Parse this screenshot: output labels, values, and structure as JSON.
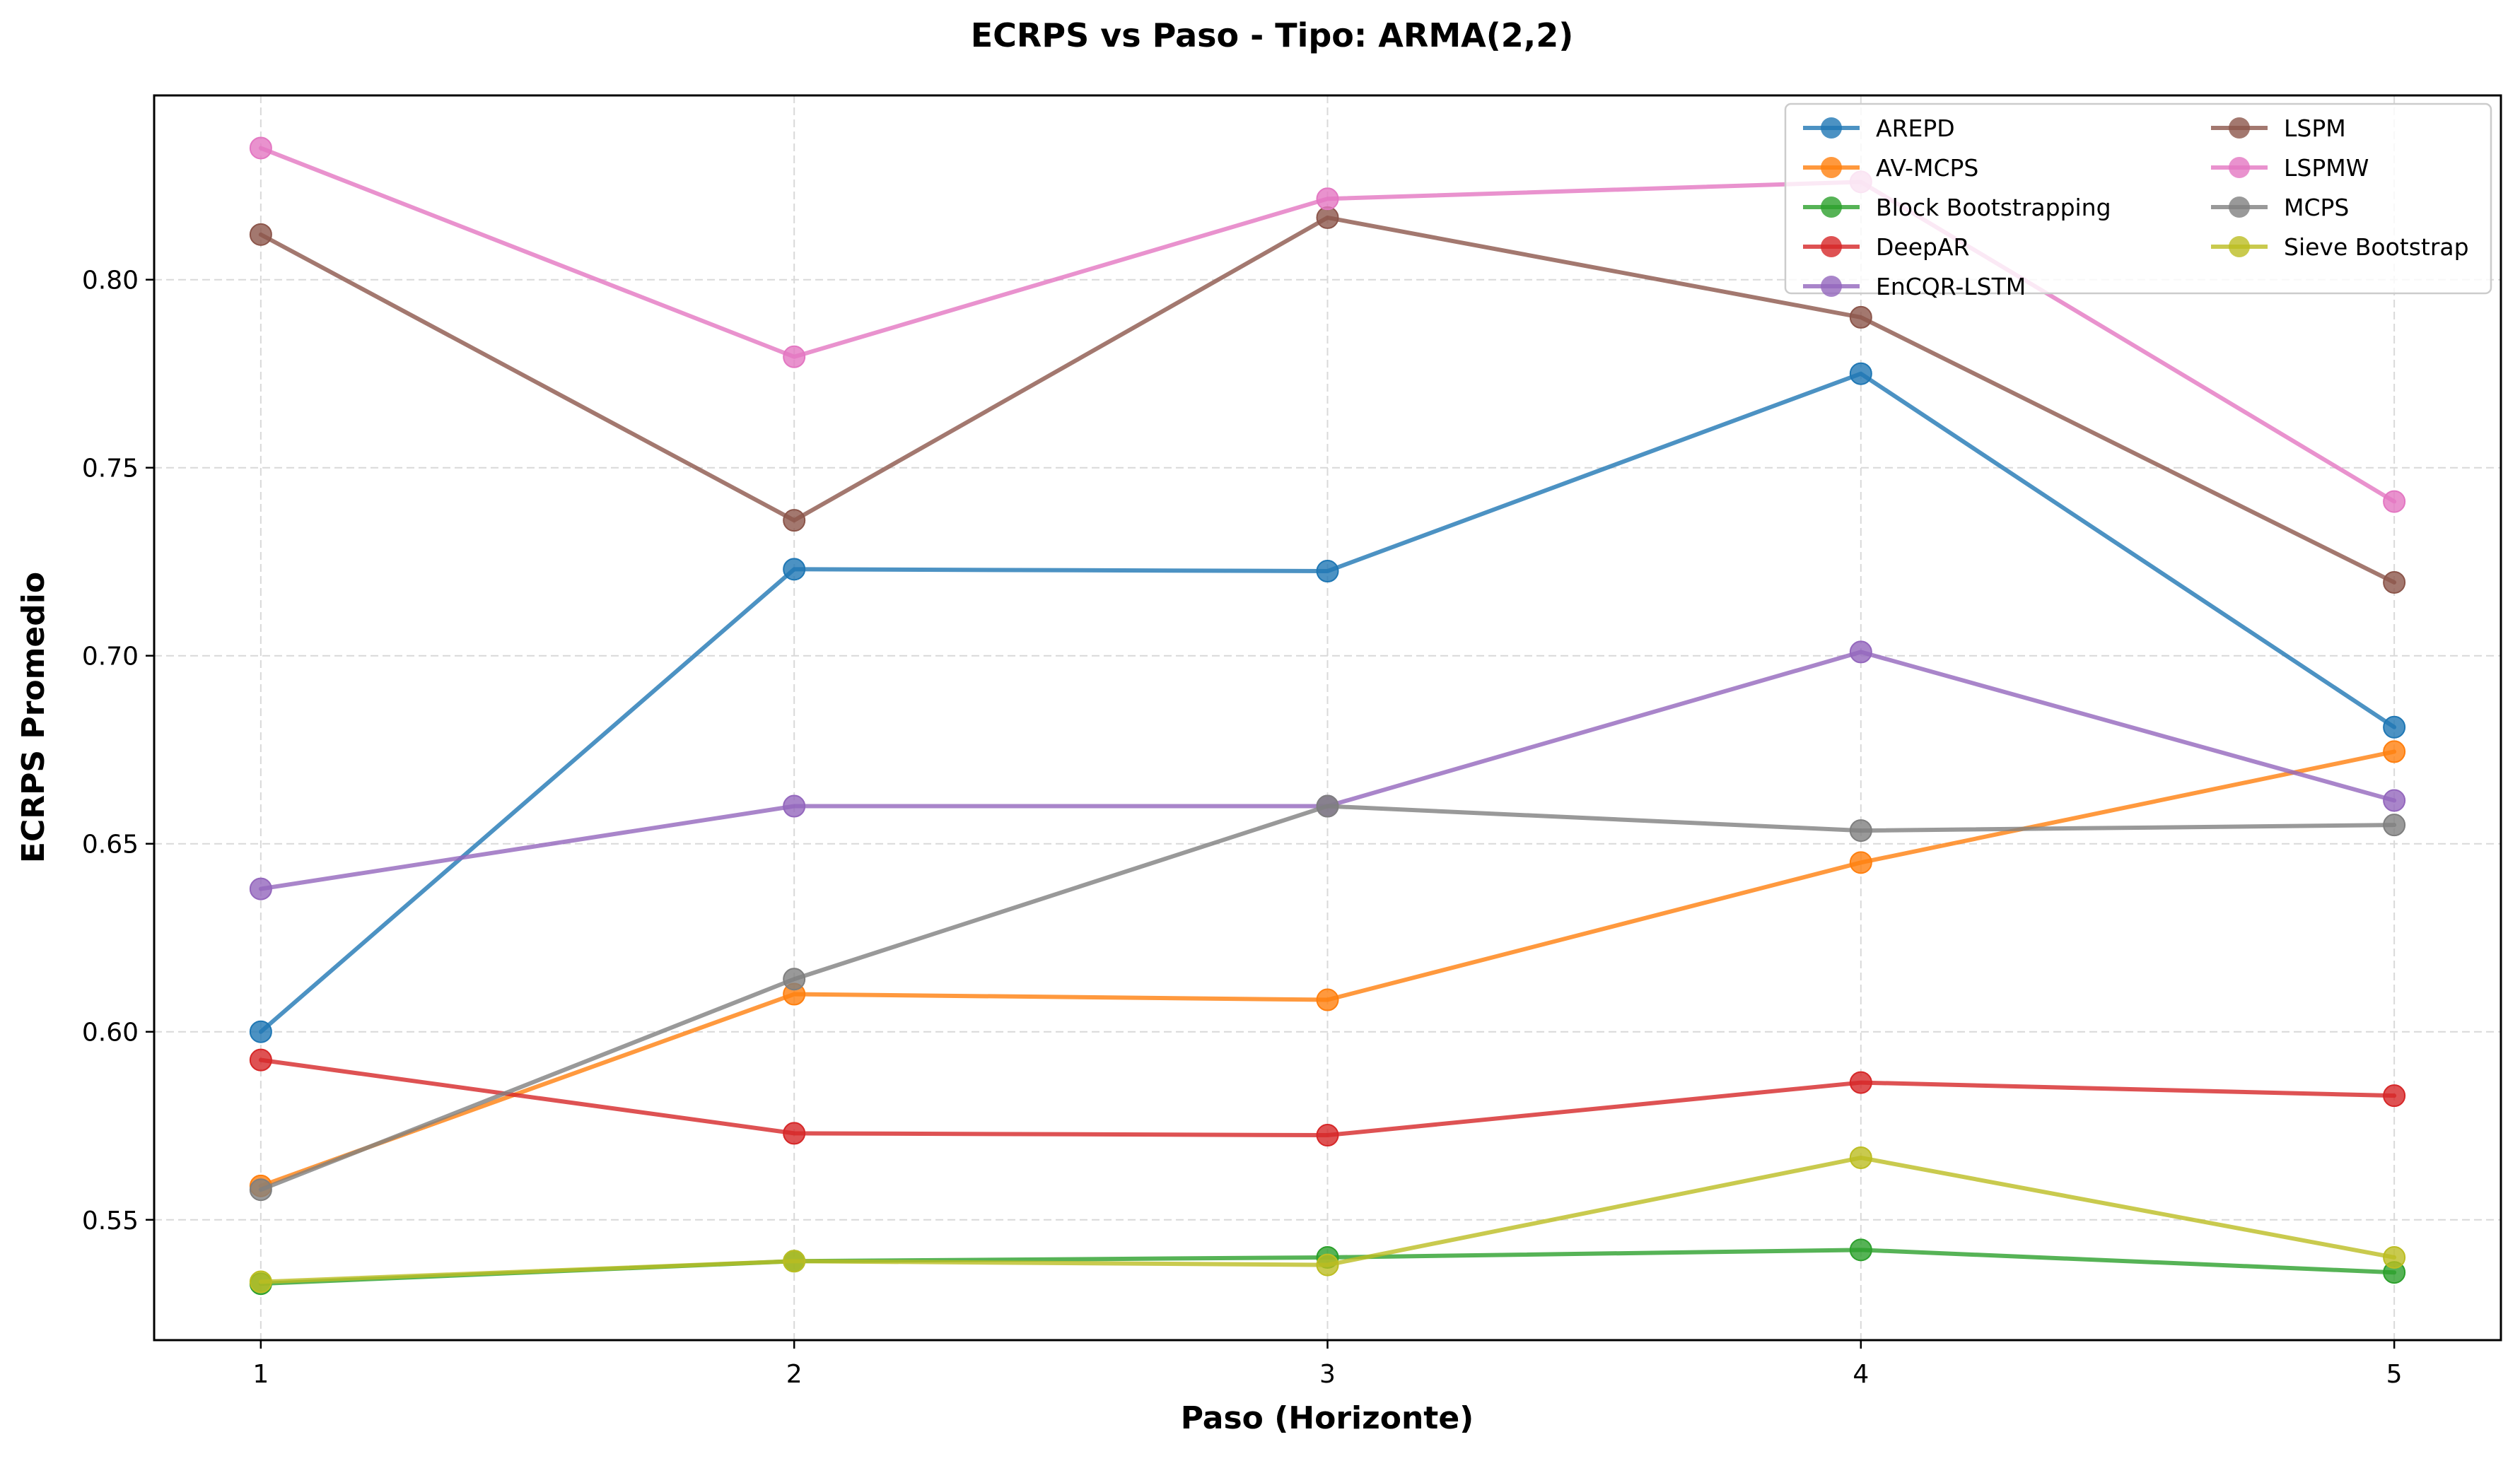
{
  "chart_data": {
    "type": "line",
    "title": "ECRPS vs Paso - Tipo: ARMA(2,2)",
    "xlabel": "Paso (Horizonte)",
    "ylabel": "ECRPS Promedio",
    "x": [
      1,
      2,
      3,
      4,
      5
    ],
    "x_ticks": [
      "1",
      "2",
      "3",
      "4",
      "5"
    ],
    "y_ticks": [
      "0.55",
      "0.60",
      "0.65",
      "0.70",
      "0.75",
      "0.80"
    ],
    "y_tick_values": [
      0.55,
      0.6,
      0.65,
      0.7,
      0.75,
      0.8
    ],
    "xlim": [
      0.8,
      5.2
    ],
    "ylim": [
      0.518,
      0.849
    ],
    "grid": true,
    "legend_position": "top-right",
    "series": [
      {
        "name": "AREPD",
        "color": "#1f77b4",
        "values": [
          0.6,
          0.723,
          0.7225,
          0.775,
          0.681
        ]
      },
      {
        "name": "AV-MCPS",
        "color": "#ff7f0e",
        "values": [
          0.559,
          0.61,
          0.6085,
          0.645,
          0.6745
        ]
      },
      {
        "name": "Block Bootstrapping",
        "color": "#2ca02c",
        "values": [
          0.533,
          0.539,
          0.54,
          0.542,
          0.536
        ]
      },
      {
        "name": "DeepAR",
        "color": "#d62728",
        "values": [
          0.5925,
          0.573,
          0.5725,
          0.5865,
          0.583
        ]
      },
      {
        "name": "EnCQR-LSTM",
        "color": "#9467bd",
        "values": [
          0.638,
          0.66,
          0.66,
          0.701,
          0.6615
        ]
      },
      {
        "name": "LSPM",
        "color": "#8c564b",
        "values": [
          0.812,
          0.736,
          0.8165,
          0.79,
          0.7195
        ]
      },
      {
        "name": "LSPMW",
        "color": "#e377c2",
        "values": [
          0.835,
          0.7795,
          0.8215,
          0.826,
          0.741
        ]
      },
      {
        "name": "MCPS",
        "color": "#7f7f7f",
        "values": [
          0.558,
          0.614,
          0.66,
          0.6535,
          0.655
        ]
      },
      {
        "name": "Sieve Bootstrap",
        "color": "#bcbd22",
        "values": [
          0.5335,
          0.539,
          0.538,
          0.5665,
          0.54
        ]
      }
    ]
  }
}
